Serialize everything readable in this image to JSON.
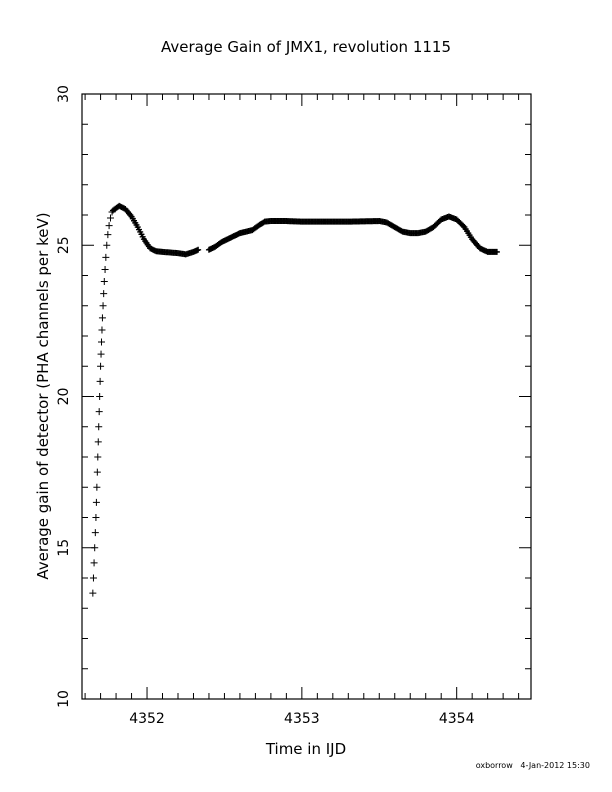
{
  "chart_data": {
    "type": "scatter",
    "title": "Average Gain of JMX1, revolution 1115",
    "xlabel": "Time in IJD",
    "ylabel": "Average gain of detector (PHA channels per keV)",
    "xlim": [
      4351.58,
      4354.48
    ],
    "ylim": [
      10,
      30
    ],
    "xticks": [
      "4352",
      "4353",
      "4354"
    ],
    "yticks": [
      "10",
      "15",
      "20",
      "25",
      "30"
    ],
    "marker": "+",
    "grid": false,
    "series": [
      {
        "rise": [
          [
            4351.65,
            13.5
          ],
          [
            4351.654,
            14.0
          ],
          [
            4351.658,
            14.5
          ],
          [
            4351.662,
            15.0
          ],
          [
            4351.666,
            15.5
          ],
          [
            4351.67,
            16.0
          ],
          [
            4351.673,
            16.5
          ],
          [
            4351.676,
            17.0
          ],
          [
            4351.679,
            17.5
          ],
          [
            4351.682,
            18.0
          ],
          [
            4351.685,
            18.5
          ],
          [
            4351.688,
            19.0
          ],
          [
            4351.691,
            19.5
          ],
          [
            4351.694,
            20.0
          ],
          [
            4351.697,
            20.5
          ],
          [
            4351.7,
            21.0
          ],
          [
            4351.703,
            21.4
          ],
          [
            4351.706,
            21.8
          ],
          [
            4351.709,
            22.2
          ],
          [
            4351.712,
            22.6
          ],
          [
            4351.716,
            23.0
          ],
          [
            4351.72,
            23.4
          ],
          [
            4351.724,
            23.8
          ],
          [
            4351.729,
            24.2
          ],
          [
            4351.734,
            24.6
          ],
          [
            4351.74,
            25.0
          ],
          [
            4351.747,
            25.35
          ],
          [
            4351.755,
            25.65
          ],
          [
            4351.764,
            25.9
          ],
          [
            4351.774,
            26.1
          ]
        ],
        "curve": [
          [
            4351.78,
            26.15
          ],
          [
            4351.82,
            26.3
          ],
          [
            4351.86,
            26.2
          ],
          [
            4351.9,
            25.95
          ],
          [
            4351.94,
            25.6
          ],
          [
            4351.98,
            25.2
          ],
          [
            4352.02,
            24.9
          ],
          [
            4352.06,
            24.8
          ],
          [
            4352.1,
            24.78
          ],
          [
            4352.15,
            24.76
          ],
          [
            4352.2,
            24.74
          ],
          [
            4352.25,
            24.7
          ],
          [
            4352.3,
            24.78
          ],
          [
            4352.33,
            24.85
          ]
        ],
        "curve2": [
          [
            4352.4,
            24.85
          ],
          [
            4352.44,
            24.95
          ],
          [
            4352.48,
            25.1
          ],
          [
            4352.52,
            25.2
          ],
          [
            4352.56,
            25.3
          ],
          [
            4352.6,
            25.4
          ],
          [
            4352.64,
            25.45
          ],
          [
            4352.68,
            25.5
          ],
          [
            4352.72,
            25.65
          ],
          [
            4352.76,
            25.78
          ],
          [
            4352.8,
            25.8
          ],
          [
            4352.9,
            25.8
          ],
          [
            4353.0,
            25.78
          ],
          [
            4353.1,
            25.78
          ],
          [
            4353.2,
            25.78
          ],
          [
            4353.3,
            25.78
          ],
          [
            4353.4,
            25.79
          ],
          [
            4353.5,
            25.8
          ],
          [
            4353.55,
            25.75
          ],
          [
            4353.6,
            25.6
          ],
          [
            4353.65,
            25.45
          ],
          [
            4353.7,
            25.4
          ],
          [
            4353.75,
            25.4
          ],
          [
            4353.8,
            25.45
          ],
          [
            4353.85,
            25.6
          ],
          [
            4353.9,
            25.85
          ],
          [
            4353.95,
            25.95
          ],
          [
            4354.0,
            25.85
          ],
          [
            4354.05,
            25.6
          ],
          [
            4354.1,
            25.2
          ],
          [
            4354.15,
            24.9
          ],
          [
            4354.2,
            24.78
          ],
          [
            4354.26,
            24.78
          ]
        ]
      }
    ]
  },
  "footer": {
    "user": "oxborrow",
    "date": "4-Jan-2012 15:30"
  }
}
